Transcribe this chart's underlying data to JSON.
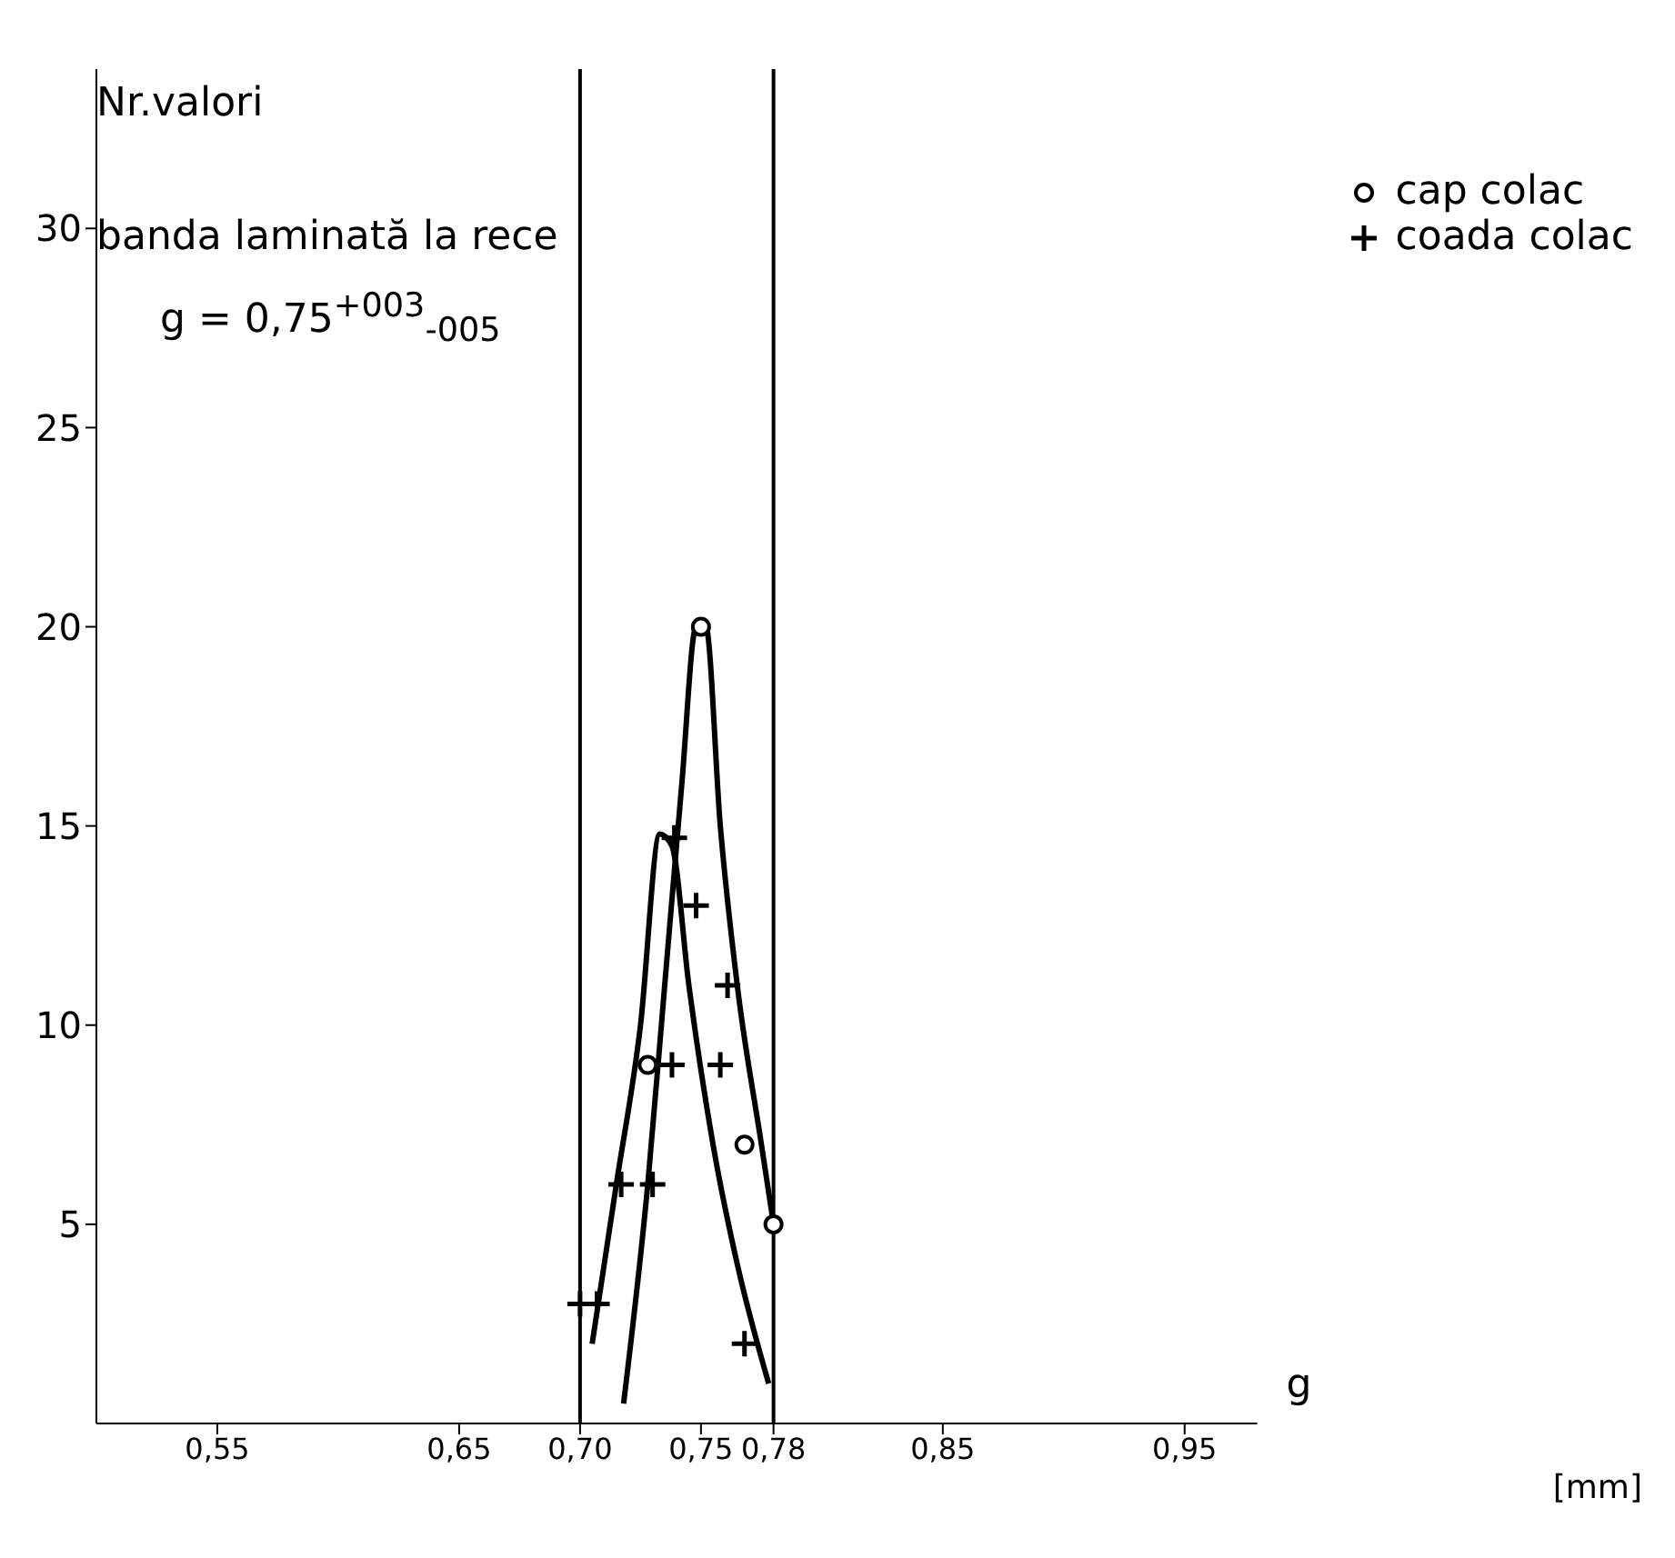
{
  "chart_data": {
    "type": "scatter",
    "title": "banda laminată la rece",
    "subtitle": "g = 0,75$^{+003}$$_{-005}$",
    "xlabel": "g",
    "ylabel": "Nr.valori",
    "annotations": [
      "[mm]"
    ],
    "xlim": [
      0.5,
      0.98
    ],
    "xticks": [
      {
        "value": 0.55,
        "label": "0,55"
      },
      {
        "value": 0.65,
        "label": "0,65"
      },
      {
        "value": 0.7,
        "label": "0,70"
      },
      {
        "value": 0.75,
        "label": "0,75"
      },
      {
        "value": 0.78,
        "label": "0,78"
      },
      {
        "value": 0.85,
        "label": "0,85"
      },
      {
        "value": 0.95,
        "label": "0,95"
      }
    ],
    "ylim": [
      0,
      34
    ],
    "yticks": [
      5,
      10,
      15,
      20,
      25,
      30
    ],
    "grid": false,
    "legend": "top right",
    "ref_lines": [
      {
        "axis": "x",
        "value": 0.7,
        "color": "#000000"
      },
      {
        "axis": "x",
        "value": 0.78,
        "color": "#000000"
      }
    ],
    "series": [
      {
        "name": "cap colac",
        "marker": "circle",
        "color": "#000000",
        "x": [
          0.728,
          0.75,
          0.768,
          0.78
        ],
        "values": [
          9,
          20,
          7,
          5
        ]
      },
      {
        "name": "coada colac",
        "marker": "cross",
        "color": "#000000",
        "x": [
          0.7,
          0.707,
          0.717,
          0.73,
          0.738,
          0.739,
          0.748,
          0.758,
          0.761,
          0.768
        ],
        "values": [
          3,
          3,
          6,
          6,
          9,
          14.7,
          13,
          9,
          11,
          2
        ]
      },
      {
        "type": "line",
        "marker": "none",
        "color": "#000000",
        "x": [
          0.705,
          0.715,
          0.725,
          0.733,
          0.738,
          0.745,
          0.755,
          0.765,
          0.778
        ],
        "values": [
          2,
          6,
          10,
          14.8,
          14.5,
          11,
          7,
          4,
          1
        ]
      },
      {
        "type": "line",
        "marker": "none",
        "color": "#000000",
        "x": [
          0.718,
          0.728,
          0.735,
          0.742,
          0.748,
          0.752,
          0.758,
          0.765,
          0.775,
          0.78
        ],
        "values": [
          0.5,
          6,
          11,
          16,
          20,
          20,
          15,
          11,
          7,
          5
        ]
      }
    ]
  }
}
